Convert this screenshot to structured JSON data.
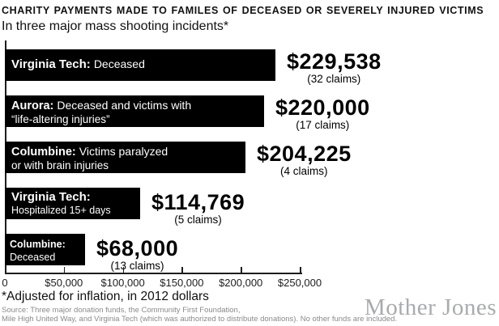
{
  "header": {
    "title": "CHARITY PAYMENTS MADE TO FAMILES OF DECEASED OR SEVERELY INJURED VICTIMS",
    "subtitle": "In three major mass shooting incidents*"
  },
  "chart_data": {
    "type": "bar",
    "orientation": "horizontal",
    "title": "CHARITY PAYMENTS MADE TO FAMILES OF DECEASED OR SEVERELY INJURED VICTIMS",
    "subtitle": "In three major mass shooting incidents*",
    "x_max": 250000,
    "x_ticks": [
      "0",
      "$50,000",
      "$100,000",
      "$150,000",
      "$200,000",
      "$250,000"
    ],
    "grid": false,
    "bar_color": "#000000",
    "bars": [
      {
        "label_bold": "Virginia Tech:",
        "label_rest": "Deceased",
        "label_line2": "",
        "value": 229538,
        "value_label": "$229,538",
        "claims_label": "(32 claims)"
      },
      {
        "label_bold": "Aurora:",
        "label_rest": "Deceased and victims with",
        "label_line2": "“life-altering injuries”",
        "value": 220000,
        "value_label": "$220,000",
        "claims_label": "(17 claims)"
      },
      {
        "label_bold": "Columbine:",
        "label_rest": "Victims paralyzed",
        "label_line2": "or with brain injuries",
        "value": 204225,
        "value_label": "$204,225",
        "claims_label": "(4 claims)"
      },
      {
        "label_bold": "Virginia Tech:",
        "label_rest": "",
        "label_line2": "Hospitalized 15+ days",
        "value": 114769,
        "value_label": "$114,769",
        "claims_label": "(5 claims)"
      },
      {
        "label_bold": "Columbine:",
        "label_rest": "",
        "label_line2": "Deceased",
        "value": 68000,
        "value_label": "$68,000",
        "claims_label": "(13 claims)"
      }
    ]
  },
  "footer": {
    "footnote": "*Adjusted for inflation, in 2012 dollars",
    "source_line1": "Source: Three major donation funds,  the Community First Foundation,",
    "source_line2": "Mile High United Way, and Virginia Tech (which was authorized to distribute donations). No other funds are included.",
    "brand": "Mother Jones"
  }
}
